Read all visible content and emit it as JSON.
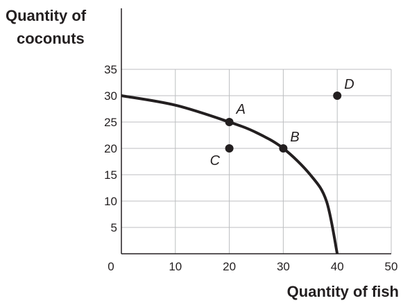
{
  "chart_data": {
    "type": "line",
    "title": "",
    "xlabel": "Quantity of fish",
    "ylabel_lines": [
      "Quantity",
      "of",
      "coconuts"
    ],
    "xlim": [
      0,
      50
    ],
    "ylim": [
      0,
      35
    ],
    "x_ticks": [
      0,
      10,
      20,
      30,
      40,
      50
    ],
    "y_ticks": [
      5,
      10,
      15,
      20,
      25,
      30,
      35
    ],
    "grid": true,
    "legend": "none",
    "series": [
      {
        "curve": "production-possibilities-frontier",
        "points": [
          {
            "x": 0,
            "y": 30
          },
          {
            "x": 10,
            "y": 28.2
          },
          {
            "x": 20,
            "y": 25
          },
          {
            "x": 25,
            "y": 23
          },
          {
            "x": 30,
            "y": 20
          },
          {
            "x": 35,
            "y": 15
          },
          {
            "x": 38,
            "y": 10
          },
          {
            "x": 40,
            "y": 0
          }
        ]
      }
    ],
    "labeled_points": [
      {
        "label": "A",
        "x": 20,
        "y": 25
      },
      {
        "label": "B",
        "x": 30,
        "y": 20
      },
      {
        "label": "C",
        "x": 20,
        "y": 20
      },
      {
        "label": "D",
        "x": 40,
        "y": 30
      }
    ],
    "colors": {
      "ink": "#231f20",
      "grid": "#bcbec0"
    }
  }
}
